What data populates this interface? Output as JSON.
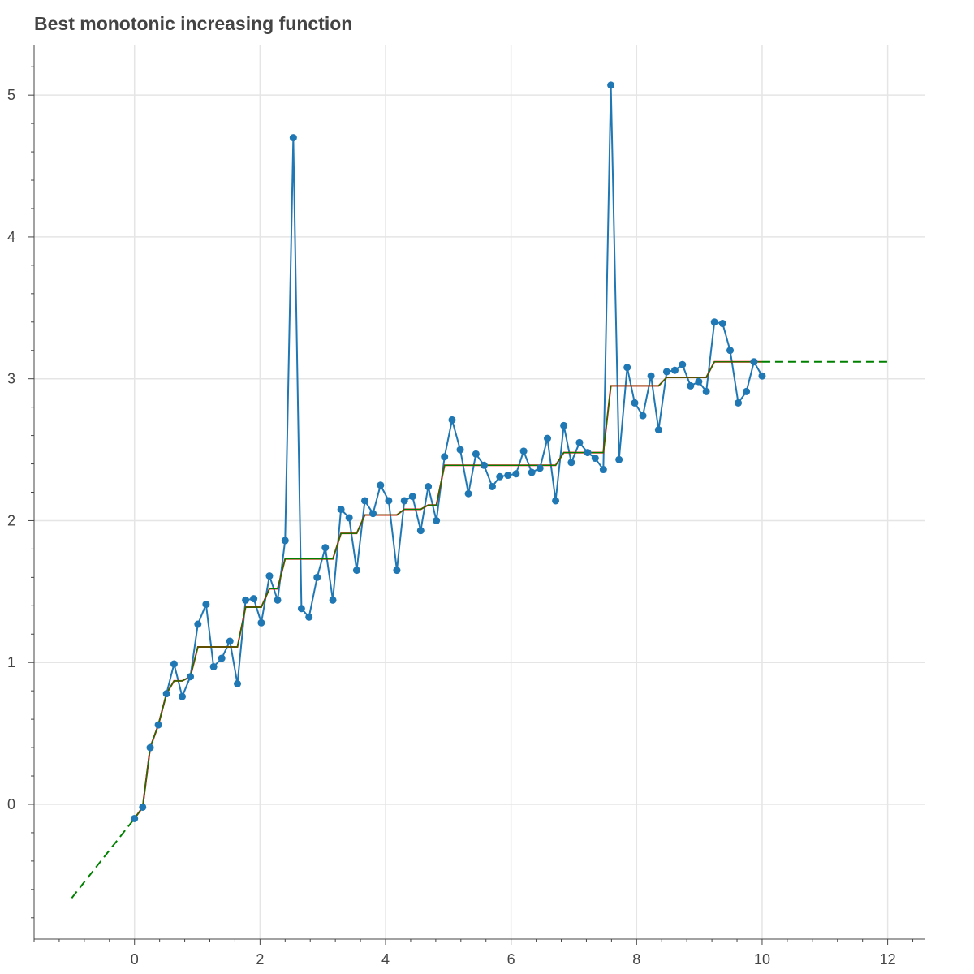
{
  "chart_data": {
    "type": "line",
    "title": "Best monotonic increasing function",
    "xlim": [
      -1.6,
      12.6
    ],
    "ylim": [
      -0.95,
      5.35
    ],
    "x_ticks": [
      0,
      2,
      4,
      6,
      8,
      10,
      12
    ],
    "x_tick_labels": [
      "0",
      "2",
      "4",
      "6",
      "8",
      "10",
      "12"
    ],
    "y_ticks": [
      0,
      1,
      2,
      3,
      4,
      5
    ],
    "y_tick_labels": [
      "0",
      "1",
      "2",
      "3",
      "4",
      "5"
    ],
    "grid": true,
    "colors": {
      "data": "#1f77b4",
      "fit_red": "#ff0000",
      "fit_green": "#008000",
      "grid": "#e5e5e5",
      "axis": "#444444",
      "title": "#444444"
    },
    "series": [
      {
        "kind": "line-markers",
        "color": "#1f77b4",
        "x": [
          0,
          0.13,
          0.25,
          0.38,
          0.51,
          0.63,
          0.76,
          0.89,
          1.01,
          1.14,
          1.26,
          1.39,
          1.52,
          1.64,
          1.77,
          1.9,
          2.02,
          2.15,
          2.28,
          2.4,
          2.53,
          2.66,
          2.78,
          2.91,
          3.04,
          3.16,
          3.29,
          3.42,
          3.54,
          3.67,
          3.8,
          3.92,
          4.05,
          4.18,
          4.3,
          4.43,
          4.56,
          4.68,
          4.81,
          4.94,
          5.06,
          5.19,
          5.32,
          5.44,
          5.57,
          5.7,
          5.82,
          5.95,
          6.08,
          6.2,
          6.33,
          6.46,
          6.58,
          6.71,
          6.84,
          6.96,
          7.09,
          7.22,
          7.34,
          7.47,
          7.59,
          7.72,
          7.85,
          7.97,
          8.1,
          8.23,
          8.35,
          8.48,
          8.61,
          8.73,
          8.86,
          8.99,
          9.11,
          9.24,
          9.37,
          9.49,
          9.62,
          9.75,
          9.87,
          10.0
        ],
        "y": [
          -0.1,
          -0.02,
          0.4,
          0.56,
          0.78,
          0.99,
          0.76,
          0.9,
          1.27,
          1.41,
          0.97,
          1.03,
          1.15,
          0.85,
          1.44,
          1.45,
          1.28,
          1.61,
          1.44,
          1.86,
          4.7,
          1.38,
          1.32,
          1.6,
          1.81,
          1.44,
          2.08,
          2.02,
          1.65,
          2.14,
          2.05,
          2.25,
          2.14,
          1.65,
          2.14,
          2.17,
          1.93,
          2.24,
          2.0,
          2.45,
          2.71,
          2.5,
          2.19,
          2.47,
          2.39,
          2.24,
          2.31,
          2.32,
          2.33,
          2.49,
          2.34,
          2.37,
          2.58,
          2.14,
          2.67,
          2.41,
          2.55,
          2.48,
          2.44,
          2.36,
          5.07,
          2.43,
          3.08,
          2.83,
          2.74,
          3.02,
          2.64,
          3.05,
          3.06,
          3.1,
          2.95,
          2.98,
          2.91,
          3.4,
          3.39,
          3.2,
          2.83,
          2.91,
          3.12,
          3.02
        ]
      },
      {
        "kind": "step-fit",
        "color": "#ff0000",
        "x": [
          0,
          0.13,
          0.25,
          0.38,
          0.51,
          0.63,
          0.76,
          0.89,
          1.01,
          1.14,
          1.26,
          1.39,
          1.52,
          1.64,
          1.77,
          1.9,
          2.02,
          2.15,
          2.28,
          2.4,
          2.53,
          2.66,
          2.78,
          2.91,
          3.04,
          3.16,
          3.29,
          3.42,
          3.54,
          3.67,
          3.8,
          3.92,
          4.05,
          4.18,
          4.3,
          4.43,
          4.56,
          4.68,
          4.81,
          4.94,
          5.06,
          5.19,
          5.32,
          5.44,
          5.57,
          5.7,
          5.82,
          5.95,
          6.08,
          6.2,
          6.33,
          6.46,
          6.58,
          6.71,
          6.84,
          6.96,
          7.09,
          7.22,
          7.34,
          7.47,
          7.59,
          7.72,
          7.85,
          7.97,
          8.1,
          8.23,
          8.35,
          8.48,
          8.61,
          8.73,
          8.86,
          8.99,
          9.11,
          9.24,
          9.37,
          9.49,
          9.62,
          9.75,
          9.87,
          10.0
        ],
        "y": [
          -0.1,
          -0.02,
          0.4,
          0.56,
          0.78,
          0.87,
          0.87,
          0.9,
          1.11,
          1.11,
          1.11,
          1.11,
          1.11,
          1.11,
          1.39,
          1.39,
          1.39,
          1.52,
          1.52,
          1.73,
          1.73,
          1.73,
          1.73,
          1.73,
          1.73,
          1.73,
          1.91,
          1.91,
          1.91,
          2.04,
          2.04,
          2.04,
          2.04,
          2.04,
          2.08,
          2.08,
          2.08,
          2.11,
          2.11,
          2.39,
          2.39,
          2.39,
          2.39,
          2.39,
          2.39,
          2.39,
          2.39,
          2.39,
          2.39,
          2.39,
          2.39,
          2.39,
          2.39,
          2.39,
          2.48,
          2.48,
          2.48,
          2.48,
          2.48,
          2.48,
          2.95,
          2.95,
          2.95,
          2.95,
          2.95,
          2.95,
          2.95,
          3.01,
          3.01,
          3.01,
          3.01,
          3.01,
          3.01,
          3.12,
          3.12,
          3.12,
          3.12,
          3.12,
          3.12,
          3.12
        ]
      },
      {
        "kind": "interpolation",
        "color": "#008000",
        "x": [
          0,
          0.13,
          0.25,
          0.38,
          0.51,
          0.63,
          0.76,
          0.89,
          1.01,
          1.14,
          1.26,
          1.39,
          1.52,
          1.64,
          1.77,
          1.9,
          2.02,
          2.15,
          2.28,
          2.4,
          2.53,
          2.66,
          2.78,
          2.91,
          3.04,
          3.16,
          3.29,
          3.42,
          3.54,
          3.67,
          3.8,
          3.92,
          4.05,
          4.18,
          4.3,
          4.43,
          4.56,
          4.68,
          4.81,
          4.94,
          5.06,
          5.19,
          5.32,
          5.44,
          5.57,
          5.7,
          5.82,
          5.95,
          6.08,
          6.2,
          6.33,
          6.46,
          6.58,
          6.71,
          6.84,
          6.96,
          7.09,
          7.22,
          7.34,
          7.47,
          7.59,
          7.72,
          7.85,
          7.97,
          8.1,
          8.23,
          8.35,
          8.48,
          8.61,
          8.73,
          8.86,
          8.99,
          9.11,
          9.24,
          9.37,
          9.49,
          9.62,
          9.75,
          9.87,
          10.0
        ],
        "y": [
          -0.1,
          -0.02,
          0.4,
          0.56,
          0.78,
          0.87,
          0.87,
          0.9,
          1.11,
          1.11,
          1.11,
          1.11,
          1.11,
          1.11,
          1.39,
          1.39,
          1.39,
          1.52,
          1.52,
          1.73,
          1.73,
          1.73,
          1.73,
          1.73,
          1.73,
          1.73,
          1.91,
          1.91,
          1.91,
          2.04,
          2.04,
          2.04,
          2.04,
          2.04,
          2.08,
          2.08,
          2.08,
          2.11,
          2.11,
          2.39,
          2.39,
          2.39,
          2.39,
          2.39,
          2.39,
          2.39,
          2.39,
          2.39,
          2.39,
          2.39,
          2.39,
          2.39,
          2.39,
          2.39,
          2.48,
          2.48,
          2.48,
          2.48,
          2.48,
          2.48,
          2.95,
          2.95,
          2.95,
          2.95,
          2.95,
          2.95,
          2.95,
          3.01,
          3.01,
          3.01,
          3.01,
          3.01,
          3.01,
          3.12,
          3.12,
          3.12,
          3.12,
          3.12,
          3.12,
          3.12
        ]
      },
      {
        "kind": "extrapolation-dashed",
        "color": "#008000",
        "segments": [
          {
            "x": [
              -1.0,
              0.0
            ],
            "y": [
              -0.66,
              -0.1
            ]
          },
          {
            "x": [
              10.0,
              12.0
            ],
            "y": [
              3.12,
              3.12
            ]
          }
        ]
      }
    ]
  }
}
